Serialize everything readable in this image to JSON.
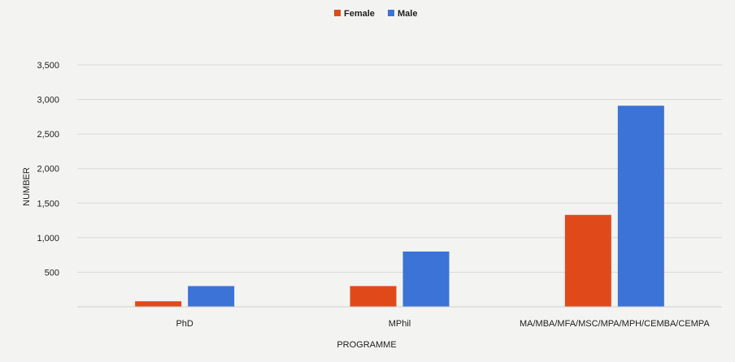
{
  "chart_data": {
    "type": "bar",
    "title": "",
    "xlabel": "PROGRAMME",
    "ylabel": "NUMBER",
    "categories": [
      "PhD",
      "MPhil",
      "MA/MBA/MFA/MSC/MPA/MPH/CEMBA/CEMPA"
    ],
    "series": [
      {
        "name": "Female",
        "values": [
          80,
          300,
          1330
        ],
        "color": "#e04a1b"
      },
      {
        "name": "Male",
        "values": [
          300,
          800,
          2910
        ],
        "color": "#3b73d6"
      }
    ],
    "ylim": [
      0,
      3500
    ],
    "yticks": [
      500,
      1000,
      1500,
      2000,
      2500,
      3000,
      3500
    ],
    "ytick_labels": [
      "500",
      "1,000",
      "1,500",
      "2,000",
      "2,500",
      "3,000",
      "3,500"
    ],
    "grid": true,
    "legend_position": "top-center"
  }
}
